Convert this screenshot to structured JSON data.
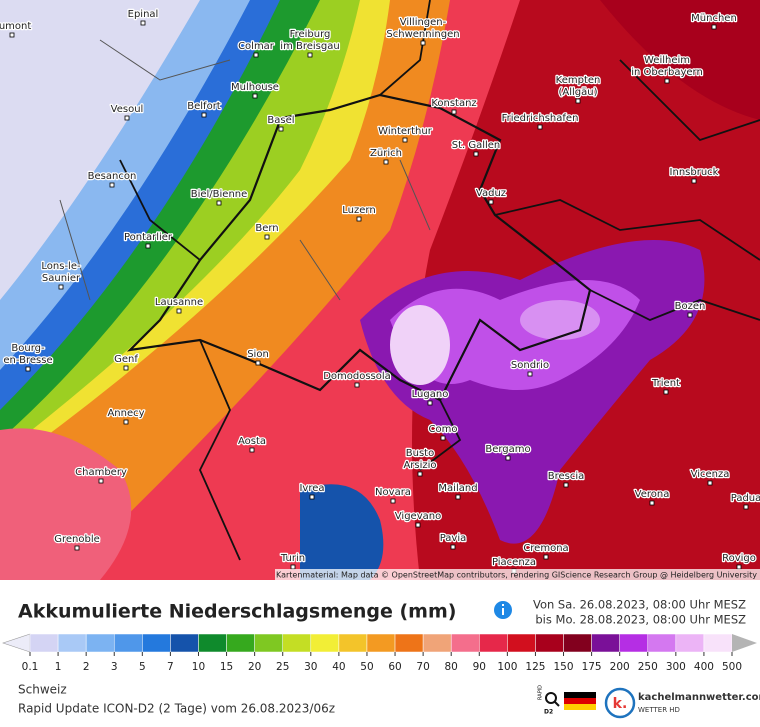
{
  "map": {
    "cities": [
      [
        "Epinal"
      ],
      [
        "aumont"
      ],
      [
        "Freiburg",
        "im Breisgau"
      ],
      [
        "Colmar"
      ],
      [
        "Villingen-",
        "Schwenningen"
      ],
      [
        "München"
      ],
      [
        "Weilheim",
        "in Oberbayern"
      ],
      [
        "Kempten",
        "(Allgäu)"
      ],
      [
        "Mulhouse"
      ],
      [
        "Vesoul"
      ],
      [
        "Belfort"
      ],
      [
        "Basel"
      ],
      [
        "Konstanz"
      ],
      [
        "Friedrichshafen"
      ],
      [
        "Winterthur"
      ],
      [
        "Zürich"
      ],
      [
        "St. Gallen"
      ],
      [
        "Besancon"
      ],
      [
        "Innsbruck"
      ],
      [
        "Biel/Bienne"
      ],
      [
        "Vaduz"
      ],
      [
        "Luzern"
      ],
      [
        "Bern"
      ],
      [
        "Pontarlier"
      ],
      [
        "Lons-le-",
        "Saunier"
      ],
      [
        "Lausanne"
      ],
      [
        "Bozen"
      ],
      [
        "Bourg-",
        "en-Bresse"
      ],
      [
        "Genf"
      ],
      [
        "Sion"
      ],
      [
        "Domodossola"
      ],
      [
        "Sondrio"
      ],
      [
        "Trient"
      ],
      [
        "Lugano"
      ],
      [
        "Annecy"
      ],
      [
        "Como"
      ],
      [
        "Aosta"
      ],
      [
        "Bergamo"
      ],
      [
        "Busto",
        "Arsizio"
      ],
      [
        "Chambery"
      ],
      [
        "Brescia"
      ],
      [
        "Vicenza"
      ],
      [
        "Ivrea"
      ],
      [
        "Novara"
      ],
      [
        "Mailand"
      ],
      [
        "Verona"
      ],
      [
        "Padua"
      ],
      [
        "Vigevano"
      ],
      [
        "Pavia"
      ],
      [
        "Grenoble"
      ],
      [
        "Cremona"
      ],
      [
        "Piacenza"
      ],
      [
        "Turin"
      ],
      [
        "Rovigo"
      ]
    ],
    "attribution": "Kartenmaterial: Map data © OpenStreetMap contributors, rendering GIScience Research Group @ Heidelberg University"
  },
  "legend": {
    "title": "Akkumulierte Niederschlagsmenge (mm)",
    "from": "Von Sa. 26.08.2023, 08:00 Uhr MESZ",
    "to": "bis Mo. 28.08.2023, 08:00 Uhr MESZ",
    "labels": [
      0.1,
      1,
      2,
      3,
      5,
      7,
      10,
      15,
      20,
      25,
      30,
      40,
      50,
      60,
      70,
      80,
      90,
      100,
      125,
      150,
      175,
      200,
      250,
      300,
      400,
      500
    ],
    "colors": [
      "#d4d4f4",
      "#a9c9f6",
      "#7cb3f2",
      "#4f97ea",
      "#2479dd",
      "#1553ab",
      "#0f8a2c",
      "#36a91e",
      "#7fc822",
      "#c4de24",
      "#f2ee36",
      "#f3c42a",
      "#f39a22",
      "#ee7418",
      "#f0a478",
      "#f46e8c",
      "#e6284a",
      "#d20f1e",
      "#a8001c",
      "#82001e",
      "#7a1098",
      "#b52ee4",
      "#d478f0",
      "#ecb4f6",
      "#f8e2fa"
    ],
    "below_color": "#ececf8",
    "above_color": "#b4b4b4"
  },
  "footer": {
    "region": "Schweiz",
    "model": "Rapid Update ICON-D2 (2 Tage) vom 26.08.2023/06z",
    "badge_top": "RAPID",
    "badge_bottom": "D2",
    "brand": "kachelmannwetter.com",
    "brand_sub": "WETTER HD",
    "logo": "k."
  }
}
